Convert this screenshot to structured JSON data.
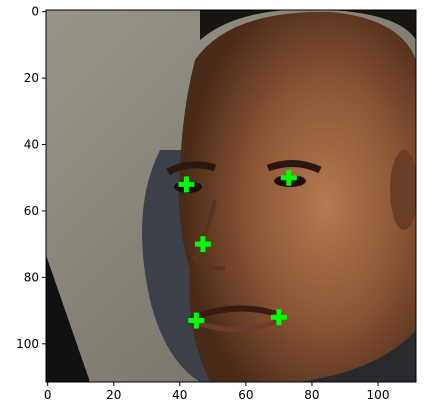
{
  "chart_data": {
    "type": "scatter",
    "title": "",
    "xlabel": "",
    "ylabel": "",
    "xlim": [
      -0.5,
      111.5
    ],
    "ylim": [
      111.5,
      -0.5
    ],
    "y_inverted": true,
    "grid": false,
    "legend": "none",
    "background": "photograph of a man's face (image shown with imshow)",
    "x_ticks": [
      0,
      20,
      40,
      60,
      80,
      100
    ],
    "y_ticks": [
      0,
      20,
      40,
      60,
      80,
      100
    ],
    "x_tick_labels": [
      "0",
      "20",
      "40",
      "60",
      "80",
      "100"
    ],
    "y_tick_labels": [
      "0",
      "20",
      "40",
      "60",
      "80",
      "100"
    ],
    "series": [
      {
        "marker": "plus",
        "color": "#00ff00",
        "points": [
          {
            "x": 42,
            "y": 52
          },
          {
            "x": 73,
            "y": 50
          },
          {
            "x": 47,
            "y": 70
          },
          {
            "x": 45,
            "y": 93
          },
          {
            "x": 70,
            "y": 92
          }
        ]
      }
    ]
  }
}
